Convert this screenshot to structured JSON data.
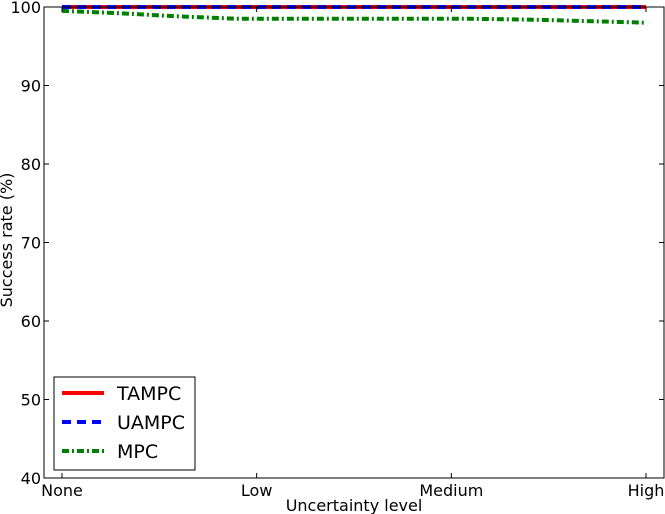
{
  "chart_data": {
    "type": "line",
    "xlabel": "Uncertainty level",
    "ylabel": "Success rate (%)",
    "ylim": [
      40,
      100
    ],
    "yticks": [
      40,
      50,
      60,
      70,
      80,
      90,
      100
    ],
    "categories": [
      "None",
      "Low",
      "Medium",
      "High"
    ],
    "xrange": [
      0,
      3
    ],
    "grid": false,
    "legend_position": "lower-left",
    "series": [
      {
        "name": "TAMPC",
        "color": "#ff0000",
        "style": "solid",
        "x": [
          0,
          0.3,
          0.6,
          0.9,
          1.2,
          1.5,
          1.8,
          2.1,
          2.4,
          2.7,
          3.0
        ],
        "values": [
          100,
          100,
          100,
          100,
          100,
          100,
          100,
          100,
          100,
          100,
          100
        ]
      },
      {
        "name": "UAMPC",
        "color": "#0000ff",
        "style": "dashed",
        "x": [
          0,
          0.3,
          0.6,
          0.9,
          1.2,
          1.5,
          1.8,
          2.1,
          2.4,
          2.7,
          3.0
        ],
        "values": [
          100,
          100,
          100,
          100,
          100,
          100,
          100,
          100,
          100,
          100,
          100
        ]
      },
      {
        "name": "MPC",
        "color": "#008000",
        "style": "dashdot",
        "x": [
          0,
          0.3,
          0.6,
          0.9,
          1.2,
          1.5,
          1.8,
          2.1,
          2.4,
          2.7,
          3.0
        ],
        "values": [
          99.5,
          99.2,
          98.8,
          98.5,
          98.5,
          98.5,
          98.5,
          98.5,
          98.4,
          98.2,
          98.0
        ]
      }
    ]
  }
}
